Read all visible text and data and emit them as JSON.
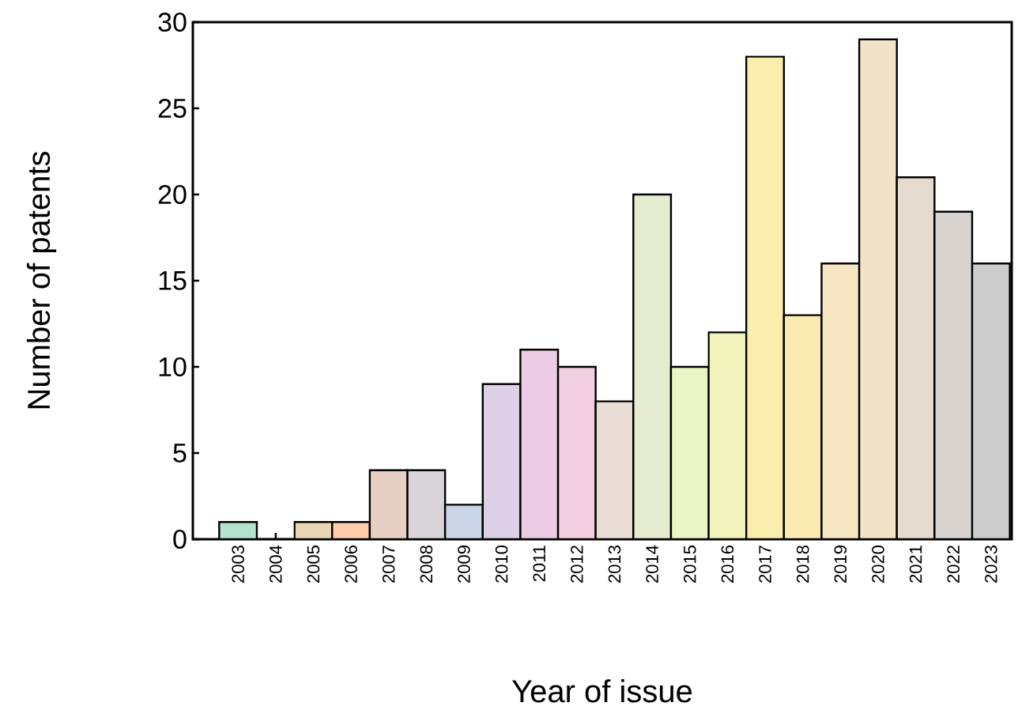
{
  "chart_data": {
    "type": "bar",
    "xlabel": "Year of issue",
    "ylabel": "Number of patents",
    "categories": [
      "2003",
      "2004",
      "2005",
      "2006",
      "2007",
      "2008",
      "2009",
      "2010",
      "2011",
      "2012",
      "2013",
      "2014",
      "2015",
      "2016",
      "2017",
      "2018",
      "2019",
      "2020",
      "2021",
      "2022",
      "2023"
    ],
    "values": [
      1,
      0,
      1,
      1,
      4,
      4,
      2,
      9,
      11,
      10,
      8,
      20,
      10,
      12,
      28,
      13,
      16,
      29,
      21,
      19,
      16
    ],
    "colors": [
      "#b3e2cd",
      "#fdcdac",
      "#e8d6b5",
      "#fdcdac",
      "#e8cfc3",
      "#d9d3da",
      "#cbd5e8",
      "#dccfe6",
      "#ebcce4",
      "#f1cfe0",
      "#eaddd6",
      "#e6ecd0",
      "#eaf5c6",
      "#f2f2bb",
      "#f9eeac",
      "#fbebb2",
      "#f5e5c0",
      "#f1e2c8",
      "#e4dace",
      "#d8d3cf",
      "#cccccc"
    ],
    "ylim": [
      0,
      30
    ],
    "yticks": [
      0,
      5,
      10,
      15,
      20,
      25,
      30
    ]
  }
}
